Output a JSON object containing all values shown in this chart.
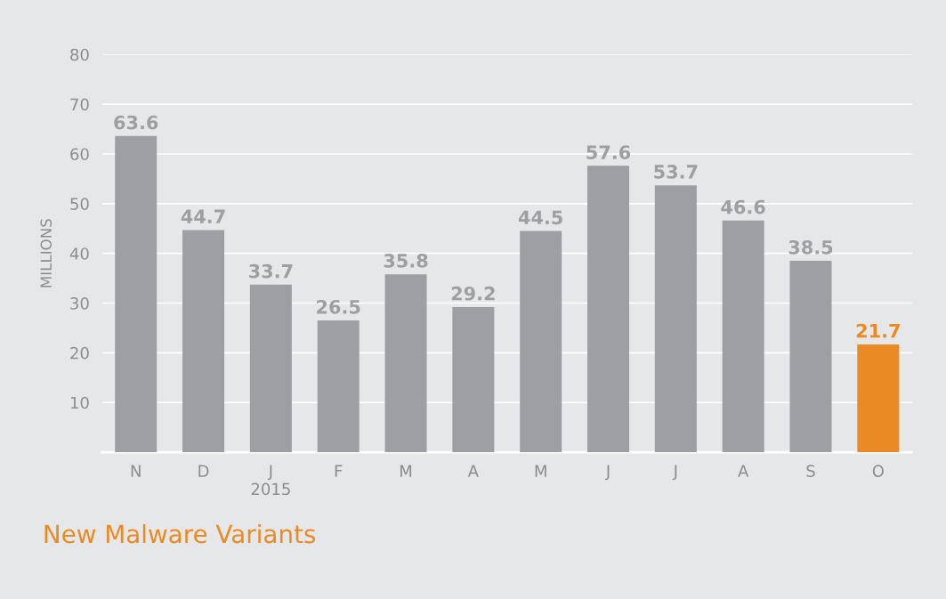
{
  "chart_data": {
    "type": "bar",
    "title": "New Malware Variants",
    "ylabel": "MILLIONS",
    "categories": [
      "N",
      "D",
      "J\n2015",
      "F",
      "M",
      "A",
      "M",
      "J",
      "J",
      "A",
      "S",
      "O"
    ],
    "values": [
      63.6,
      44.7,
      33.7,
      26.5,
      35.8,
      29.2,
      44.5,
      57.6,
      53.7,
      46.6,
      38.5,
      21.7
    ],
    "colors": [
      "#9d9fa2",
      "#9d9fa2",
      "#9d9fa2",
      "#9d9fa2",
      "#9d9fa2",
      "#9d9fa2",
      "#9d9fa2",
      "#9d9fa2",
      "#9d9fa2",
      "#9d9fa2",
      "#9d9fa2",
      "#e98a24"
    ],
    "ylim": [
      0,
      80
    ],
    "yticks": [
      10,
      20,
      30,
      40,
      50,
      60,
      70,
      80
    ],
    "grid": "y",
    "data_labels": true
  }
}
